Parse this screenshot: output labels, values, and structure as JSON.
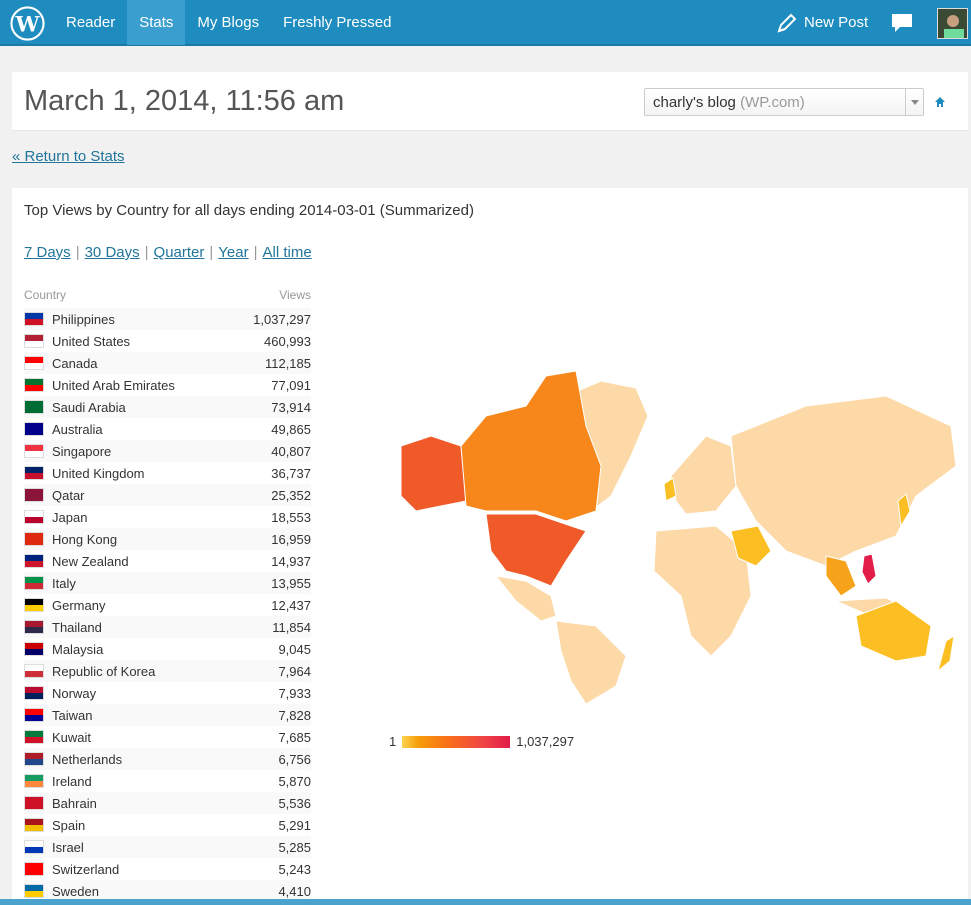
{
  "topbar": {
    "nav": [
      {
        "label": "Reader",
        "active": false
      },
      {
        "label": "Stats",
        "active": true
      },
      {
        "label": "My Blogs",
        "active": false
      },
      {
        "label": "Freshly Pressed",
        "active": false
      }
    ],
    "new_post": "New Post",
    "accent": "#1e8cbe"
  },
  "header": {
    "title": "March 1, 2014, 11:56 am",
    "blog_name": "charly's blog",
    "blog_suffix": "(WP.com)"
  },
  "return_link": "« Return to Stats",
  "stats": {
    "title": "Top Views by Country for all days ending 2014-03-01 (Summarized)",
    "periods": [
      "7 Days",
      "30 Days",
      "Quarter",
      "Year",
      "All time"
    ],
    "col_country": "Country",
    "col_views": "Views",
    "rows": [
      {
        "country": "Philippines",
        "views": "1,037,297",
        "flag": [
          "#0038a8",
          "#ce1126"
        ]
      },
      {
        "country": "United States",
        "views": "460,993",
        "flag": [
          "#b22234",
          "#ffffff"
        ]
      },
      {
        "country": "Canada",
        "views": "112,185",
        "flag": [
          "#ff0000",
          "#ffffff"
        ]
      },
      {
        "country": "United Arab Emirates",
        "views": "77,091",
        "flag": [
          "#00732f",
          "#ff0000"
        ]
      },
      {
        "country": "Saudi Arabia",
        "views": "73,914",
        "flag": [
          "#006c35",
          "#006c35"
        ]
      },
      {
        "country": "Australia",
        "views": "49,865",
        "flag": [
          "#00008b",
          "#00008b"
        ]
      },
      {
        "country": "Singapore",
        "views": "40,807",
        "flag": [
          "#ef3340",
          "#ffffff"
        ]
      },
      {
        "country": "United Kingdom",
        "views": "36,737",
        "flag": [
          "#012169",
          "#c8102e"
        ]
      },
      {
        "country": "Qatar",
        "views": "25,352",
        "flag": [
          "#8a1538",
          "#8a1538"
        ]
      },
      {
        "country": "Japan",
        "views": "18,553",
        "flag": [
          "#ffffff",
          "#bc002d"
        ]
      },
      {
        "country": "Hong Kong",
        "views": "16,959",
        "flag": [
          "#de2910",
          "#de2910"
        ]
      },
      {
        "country": "New Zealand",
        "views": "14,937",
        "flag": [
          "#00247d",
          "#cc142b"
        ]
      },
      {
        "country": "Italy",
        "views": "13,955",
        "flag": [
          "#009246",
          "#ce2b37"
        ]
      },
      {
        "country": "Germany",
        "views": "12,437",
        "flag": [
          "#000000",
          "#ffce00"
        ]
      },
      {
        "country": "Thailand",
        "views": "11,854",
        "flag": [
          "#a51931",
          "#2d2a4a"
        ]
      },
      {
        "country": "Malaysia",
        "views": "9,045",
        "flag": [
          "#cc0001",
          "#010066"
        ]
      },
      {
        "country": "Republic of Korea",
        "views": "7,964",
        "flag": [
          "#ffffff",
          "#cd2e3a"
        ]
      },
      {
        "country": "Norway",
        "views": "7,933",
        "flag": [
          "#ba0c2f",
          "#00205b"
        ]
      },
      {
        "country": "Taiwan",
        "views": "7,828",
        "flag": [
          "#fe0000",
          "#000095"
        ]
      },
      {
        "country": "Kuwait",
        "views": "7,685",
        "flag": [
          "#007a3d",
          "#ce1126"
        ]
      },
      {
        "country": "Netherlands",
        "views": "6,756",
        "flag": [
          "#ae1c28",
          "#21468b"
        ]
      },
      {
        "country": "Ireland",
        "views": "5,870",
        "flag": [
          "#169b62",
          "#ff883e"
        ]
      },
      {
        "country": "Bahrain",
        "views": "5,536",
        "flag": [
          "#ce1126",
          "#ce1126"
        ]
      },
      {
        "country": "Spain",
        "views": "5,291",
        "flag": [
          "#aa151b",
          "#f1bf00"
        ]
      },
      {
        "country": "Israel",
        "views": "5,285",
        "flag": [
          "#ffffff",
          "#0038b8"
        ]
      },
      {
        "country": "Switzerland",
        "views": "5,243",
        "flag": [
          "#ff0000",
          "#ff0000"
        ]
      },
      {
        "country": "Sweden",
        "views": "4,410",
        "flag": [
          "#006aa7",
          "#fecc00"
        ]
      }
    ],
    "legend_min": "1",
    "legend_max": "1,037,297"
  }
}
